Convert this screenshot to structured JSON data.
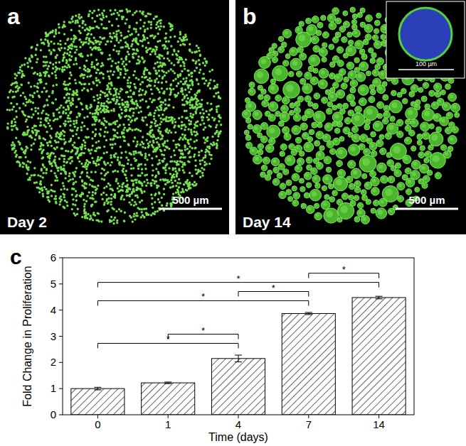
{
  "chart_data": {
    "type": "bar",
    "x_label": "Time (days)",
    "y_label": "Fold Change in Proliferation",
    "categories": [
      "0",
      "1",
      "4",
      "7",
      "14"
    ],
    "values": [
      1.0,
      1.22,
      2.15,
      3.87,
      4.48
    ],
    "errors": [
      0.05,
      0.03,
      0.13,
      0.04,
      0.05
    ],
    "color": "#000000",
    "ylim": [
      0,
      6
    ],
    "yticks": [
      0,
      1,
      2,
      3,
      4,
      5,
      6
    ],
    "grid": false,
    "significance": [
      {
        "from": 0,
        "to": 2,
        "label": "*"
      },
      {
        "from": 1,
        "to": 2,
        "label": "*"
      },
      {
        "from": 0,
        "to": 3,
        "label": "*"
      },
      {
        "from": 2,
        "to": 3,
        "label": "*"
      },
      {
        "from": 0,
        "to": 4,
        "label": "*"
      },
      {
        "from": 3,
        "to": 4,
        "label": "*"
      }
    ]
  },
  "panels": [
    {
      "letter": "a",
      "caption": "Day 2",
      "scale_bar": "500 µm"
    },
    {
      "letter": "b",
      "caption": "Day 14",
      "scale_bar": "500 µm",
      "inset_scale_bar": "100 µm"
    },
    {
      "letter": "c"
    }
  ]
}
